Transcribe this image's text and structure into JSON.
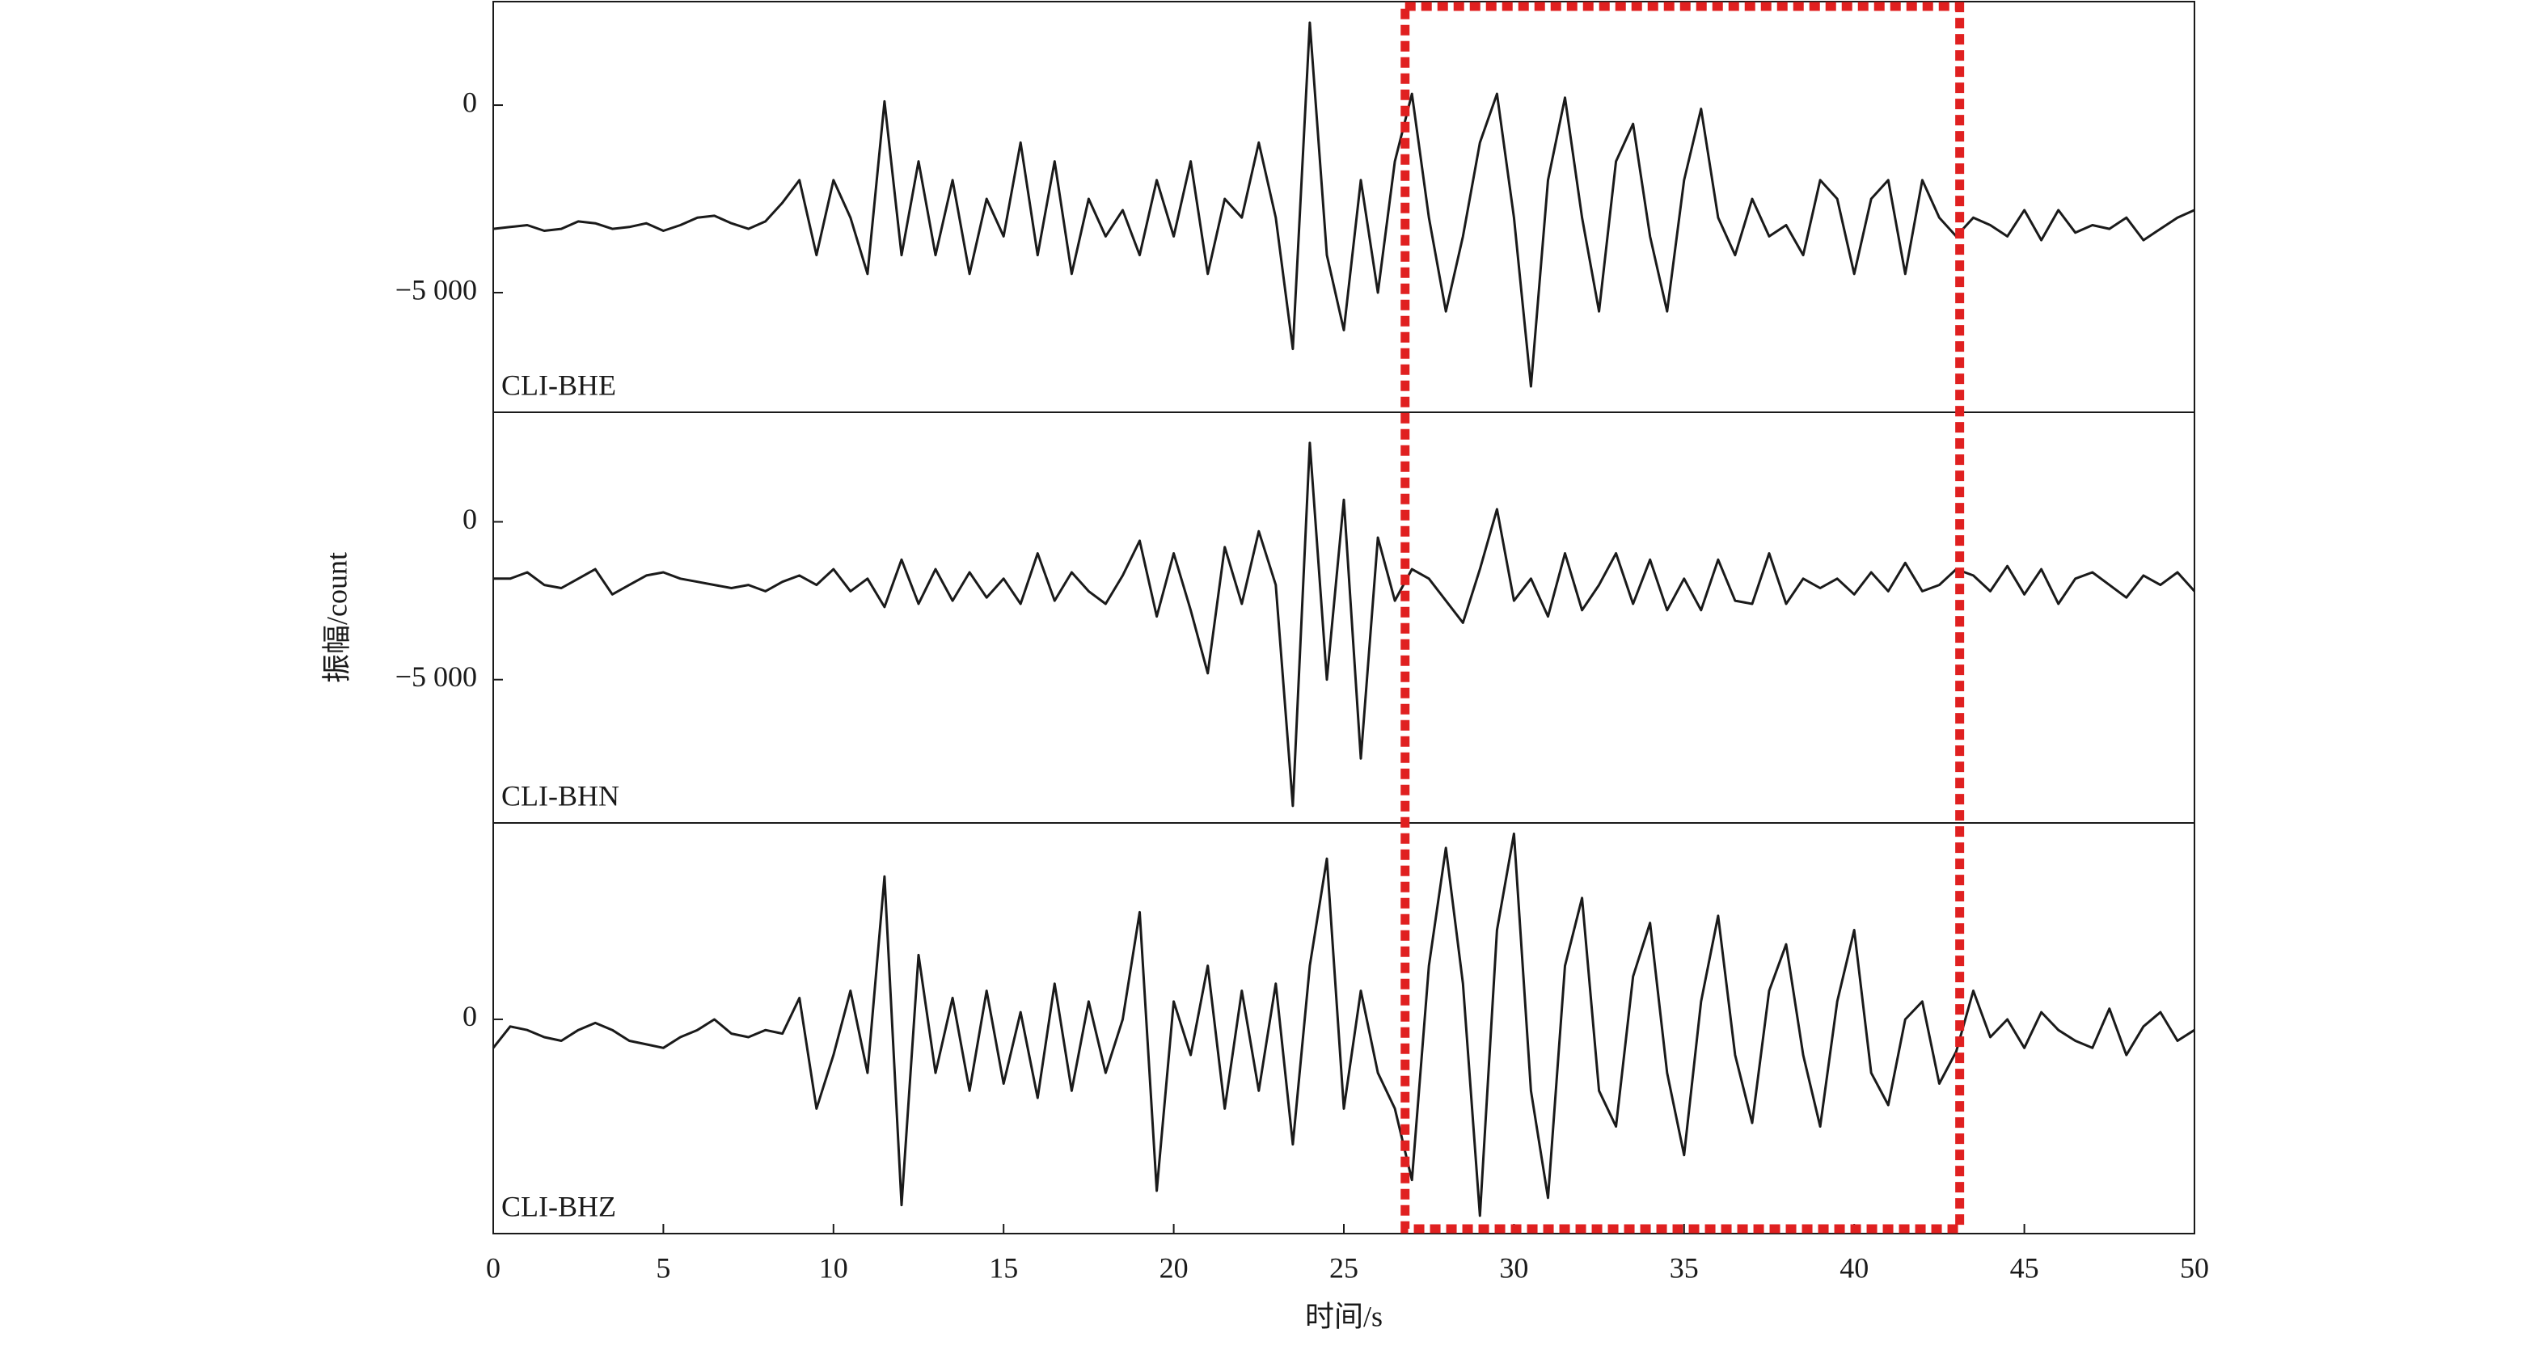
{
  "chart_data": {
    "type": "line",
    "xlabel": "时间/s",
    "ylabel": "振幅/count",
    "x": [
      0,
      0.5,
      1,
      1.5,
      2,
      2.5,
      3,
      3.5,
      4,
      4.5,
      5,
      5.5,
      6,
      6.5,
      7,
      7.5,
      8,
      8.5,
      9,
      9.5,
      10,
      10.5,
      11,
      11.5,
      12,
      12.5,
      13,
      13.5,
      14,
      14.5,
      15,
      15.5,
      16,
      16.5,
      17,
      17.5,
      18,
      18.5,
      19,
      19.5,
      20,
      20.5,
      21,
      21.5,
      22,
      22.5,
      23,
      23.5,
      24,
      24.5,
      25,
      25.5,
      26,
      26.5,
      27,
      27.5,
      28,
      28.5,
      29,
      29.5,
      30,
      30.5,
      31,
      31.5,
      32,
      32.5,
      33,
      33.5,
      34,
      34.5,
      35,
      35.5,
      36,
      36.5,
      37,
      37.5,
      38,
      38.5,
      39,
      39.5,
      40,
      40.5,
      41,
      41.5,
      42,
      42.5,
      43,
      43.5,
      44,
      44.5,
      45,
      45.5,
      46,
      46.5,
      47,
      47.5,
      48,
      48.5,
      49,
      49.5,
      50
    ],
    "xlim": [
      0,
      50
    ],
    "xticks": [
      0,
      5,
      10,
      15,
      20,
      25,
      30,
      35,
      40,
      45,
      50
    ],
    "highlight_xlim": [
      26.8,
      43.1
    ],
    "highlight_color": "#e02020",
    "series": [
      {
        "name": "CLI-BHE",
        "color": "#1a1a1a",
        "ylim": [
          -8190,
          2760
        ],
        "yticks": [
          0,
          {
            "value": -5000,
            "label": "−5 000"
          }
        ],
        "values": [
          -3300,
          -3250,
          -3200,
          -3350,
          -3300,
          -3100,
          -3150,
          -3300,
          -3250,
          -3150,
          -3350,
          -3200,
          -3000,
          -2950,
          -3150,
          -3300,
          -3100,
          -2600,
          -2000,
          -4000,
          -2000,
          -3000,
          -4500,
          100,
          -4000,
          -1500,
          -4000,
          -2000,
          -4500,
          -2500,
          -3500,
          -1000,
          -4000,
          -1500,
          -4500,
          -2500,
          -3500,
          -2800,
          -4000,
          -2000,
          -3500,
          -1500,
          -4500,
          -2500,
          -3000,
          -1000,
          -3000,
          -6500,
          2200,
          -4000,
          -6000,
          -2000,
          -5000,
          -1500,
          300,
          -3000,
          -5500,
          -3500,
          -1000,
          300,
          -3000,
          -7500,
          -2000,
          200,
          -3000,
          -5500,
          -1500,
          -500,
          -3500,
          -5500,
          -2000,
          -100,
          -3000,
          -4000,
          -2500,
          -3500,
          -3200,
          -4000,
          -2000,
          -2500,
          -4500,
          -2500,
          -2000,
          -4500,
          -2000,
          -3000,
          -3500,
          -3000,
          -3200,
          -3500,
          -2800,
          -3600,
          -2800,
          -3400,
          -3200,
          -3300,
          -3000,
          -3600,
          -3300,
          -3000,
          -2800
        ]
      },
      {
        "name": "CLI-BHN",
        "color": "#1a1a1a",
        "ylim": [
          -9540,
          3470
        ],
        "yticks": [
          0,
          {
            "value": -5000,
            "label": "−5 000"
          }
        ],
        "values": [
          -1800,
          -1800,
          -1600,
          -2000,
          -2100,
          -1800,
          -1500,
          -2300,
          -2000,
          -1700,
          -1600,
          -1800,
          -1900,
          -2000,
          -2100,
          -2000,
          -2200,
          -1900,
          -1700,
          -2000,
          -1500,
          -2200,
          -1800,
          -2700,
          -1200,
          -2600,
          -1500,
          -2500,
          -1600,
          -2400,
          -1800,
          -2600,
          -1000,
          -2500,
          -1600,
          -2200,
          -2600,
          -1700,
          -600,
          -3000,
          -1000,
          -2800,
          -4800,
          -800,
          -2600,
          -300,
          -2000,
          -9000,
          2500,
          -5000,
          700,
          -7500,
          -500,
          -2500,
          -1500,
          -1800,
          -2500,
          -3200,
          -1500,
          400,
          -2500,
          -1800,
          -3000,
          -1000,
          -2800,
          -2000,
          -1000,
          -2600,
          -1200,
          -2800,
          -1800,
          -2800,
          -1200,
          -2500,
          -2600,
          -1000,
          -2600,
          -1800,
          -2100,
          -1800,
          -2300,
          -1600,
          -2200,
          -1300,
          -2200,
          -2000,
          -1500,
          -1700,
          -2200,
          -1400,
          -2300,
          -1500,
          -2600,
          -1800,
          -1600,
          -2000,
          -2400,
          -1700,
          -2000,
          -1600,
          -2200
        ]
      },
      {
        "name": "CLI-BHZ",
        "color": "#1a1a1a",
        "ylim": [
          -6000,
          5500
        ],
        "yticks": [
          0
        ],
        "values": [
          -800,
          -200,
          -300,
          -500,
          -600,
          -300,
          -100,
          -300,
          -600,
          -700,
          -800,
          -500,
          -300,
          0,
          -400,
          -500,
          -300,
          -400,
          600,
          -2500,
          -1000,
          800,
          -1500,
          4000,
          -5200,
          1800,
          -1500,
          600,
          -2000,
          800,
          -1800,
          200,
          -2200,
          1000,
          -2000,
          500,
          -1500,
          0,
          3000,
          -4800,
          500,
          -1000,
          1500,
          -2500,
          800,
          -2000,
          1000,
          -3500,
          1500,
          4500,
          -2500,
          800,
          -1500,
          -2500,
          -4500,
          1500,
          4800,
          1000,
          -5500,
          2500,
          5200,
          -2000,
          -5000,
          1500,
          3400,
          -2000,
          -3000,
          1200,
          2700,
          -1500,
          -3800,
          500,
          2900,
          -1000,
          -2900,
          800,
          2100,
          -1000,
          -3000,
          500,
          2500,
          -1500,
          -2400,
          0,
          500,
          -1800,
          -900,
          800,
          -500,
          0,
          -800,
          200,
          -300,
          -600,
          -800,
          300,
          -1000,
          -200,
          200,
          -600,
          -300
        ]
      }
    ]
  }
}
